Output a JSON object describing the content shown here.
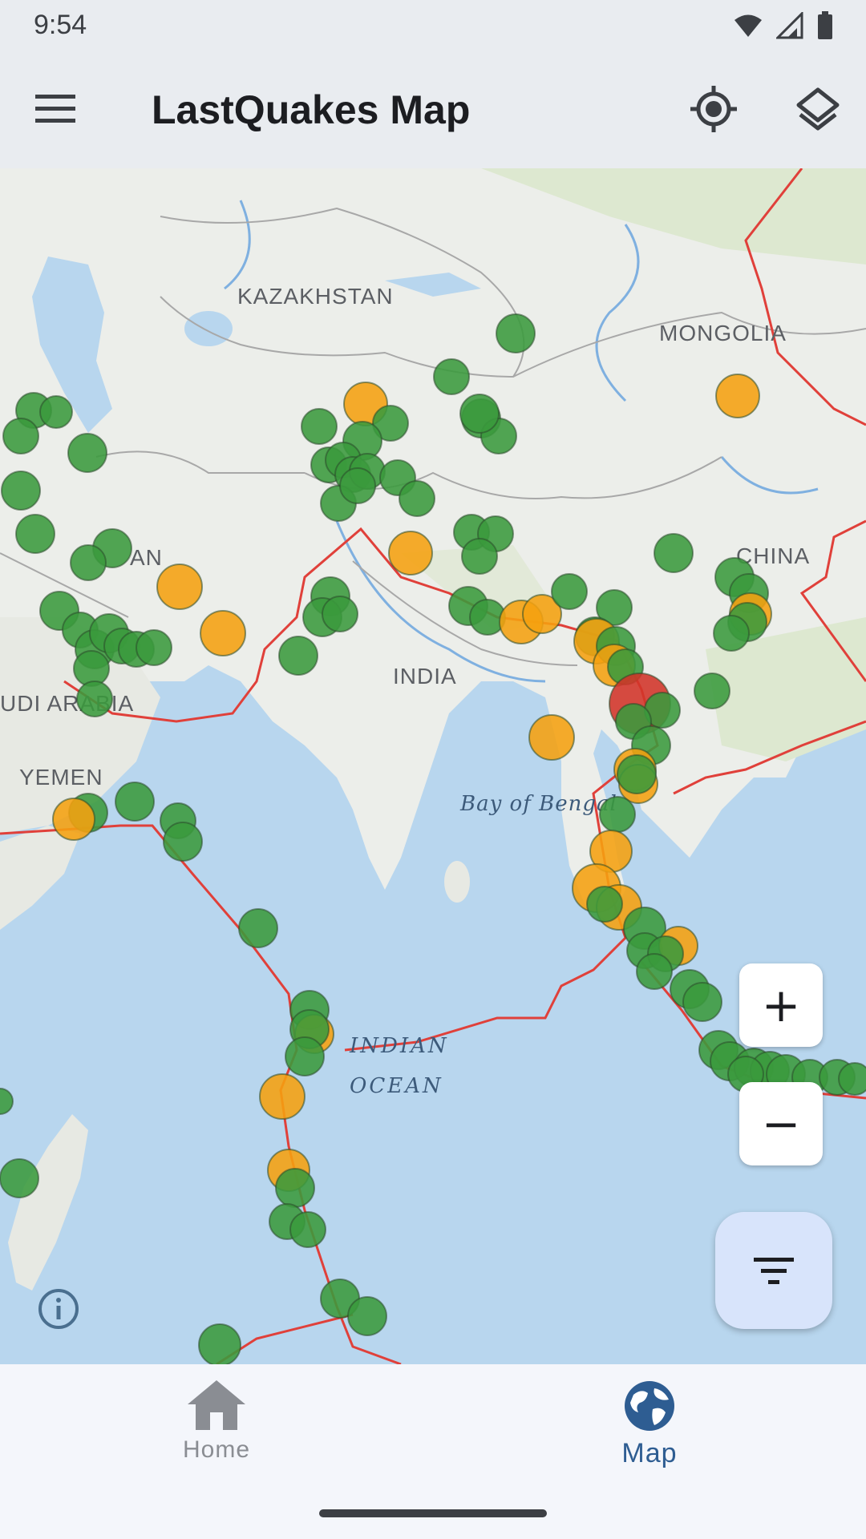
{
  "status_bar": {
    "time": "9:54",
    "icons": [
      "wifi-icon",
      "signal-icon",
      "battery-icon"
    ]
  },
  "app_bar": {
    "title": "LastQuakes Map",
    "menu_icon": "menu-icon",
    "locate_icon": "my-location-icon",
    "layers_icon": "layers-icon"
  },
  "map": {
    "labels": {
      "kazakhstan": "KAZAKHSTAN",
      "mongolia": "MONGOLIA",
      "china": "CHINA",
      "india": "INDIA",
      "saudi": "UDI ARABIA",
      "yemen": "YEMEN",
      "afghan_partial": "AN",
      "bay": "Bay of Bengal",
      "indian": "INDIAN",
      "ocean": "OCEAN"
    },
    "colors": {
      "minor": "#3a9a3c",
      "moderate": "#f5a00f",
      "strong": "#d23328",
      "plate_boundary": "#e0403a",
      "water": "#b8d6ee",
      "land": "#eceeea"
    },
    "zoom_in_label": "+",
    "zoom_out_label": "−",
    "filter_icon": "filter-icon",
    "info_icon": "info-icon"
  },
  "bottom_nav": {
    "items": [
      {
        "label": "Home",
        "icon": "home-icon",
        "selected": false
      },
      {
        "label": "Map",
        "icon": "globe-icon",
        "selected": true
      }
    ]
  }
}
